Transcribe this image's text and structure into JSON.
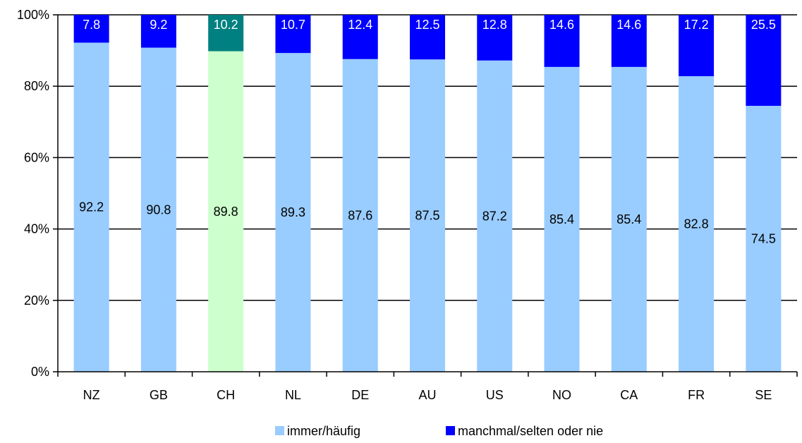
{
  "chart_data": {
    "type": "bar",
    "stacked": true,
    "percent_axis": true,
    "categories": [
      "NZ",
      "GB",
      "CH",
      "NL",
      "DE",
      "AU",
      "US",
      "NO",
      "CA",
      "FR",
      "SE"
    ],
    "series": [
      {
        "name": "immer/häufig",
        "values": [
          92.2,
          90.8,
          89.8,
          89.3,
          87.6,
          87.5,
          87.2,
          85.4,
          85.4,
          82.8,
          74.5
        ],
        "color": "#99ccff",
        "highlight_color": "#ccffcc",
        "label_color": "#000000"
      },
      {
        "name": "manchmal/selten oder nie",
        "values": [
          7.8,
          9.2,
          10.2,
          10.7,
          12.4,
          12.5,
          12.8,
          14.6,
          14.6,
          17.2,
          25.5
        ],
        "color": "#0000ff",
        "highlight_color": "#008080",
        "label_color": "#ffffff"
      }
    ],
    "highlight_category": "CH",
    "y_ticks": [
      "0%",
      "20%",
      "40%",
      "60%",
      "80%",
      "100%"
    ],
    "ylim": [
      0,
      100
    ],
    "grid": true,
    "legend_position": "bottom"
  }
}
